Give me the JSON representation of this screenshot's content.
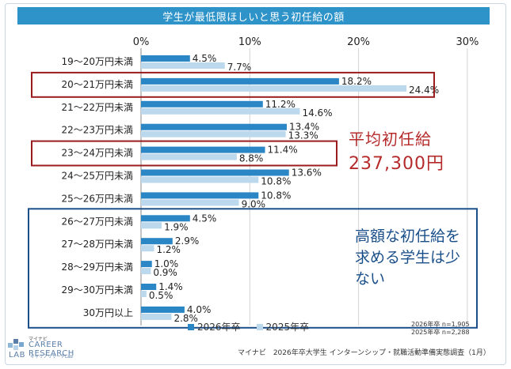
{
  "title": "学生が最低限ほしいと思う初任給の額",
  "chart_data": {
    "type": "bar",
    "orientation": "horizontal",
    "categories": [
      "19～20万円未満",
      "20～21万円未満",
      "21～22万円未満",
      "22～23万円未満",
      "23～24万円未満",
      "24～25万円未満",
      "25～26万円未満",
      "26～27万円未満",
      "27～28万円未満",
      "28～29万円未満",
      "29～30万円未満",
      "30万円以上"
    ],
    "series": [
      {
        "name": "2026年卒",
        "values": [
          4.5,
          18.2,
          11.2,
          13.4,
          11.4,
          13.6,
          10.8,
          4.5,
          2.9,
          1.0,
          1.4,
          4.0
        ],
        "color": "#2b86c5"
      },
      {
        "name": "2025年卒",
        "values": [
          7.7,
          24.4,
          14.6,
          13.3,
          8.8,
          10.8,
          9.0,
          1.9,
          1.2,
          0.9,
          0.5,
          2.8
        ],
        "color": "#bcd8ec"
      }
    ],
    "xlim": [
      0,
      30
    ],
    "xticks": [
      "0%",
      "10%",
      "20%",
      "30%"
    ],
    "grid": true,
    "legend": "bottom"
  },
  "highlight_color": "#9b1c1c",
  "note_box_color": "#1b4f8a",
  "callouts": {
    "avg_label": "平均初任給",
    "avg_value": "237,300円",
    "note": "高額な初任給を求める学生は少ない"
  },
  "legend": {
    "s1": "2026年卒",
    "s2": "2025年卒"
  },
  "sample": {
    "line1": "2026年卒 n=1,905",
    "line2": "2025年卒 n=2,288"
  },
  "source": "マイナビ　2026年卒大学生 インターンシップ・就職活動準備実態調査（1月）",
  "logo": {
    "brand": "マイナビ",
    "name1": "CAREER RESEARCH",
    "name2": "LAB",
    "sub": "キャリアリサーチLab",
    "icon": "career-research-lab-logo-icon"
  }
}
